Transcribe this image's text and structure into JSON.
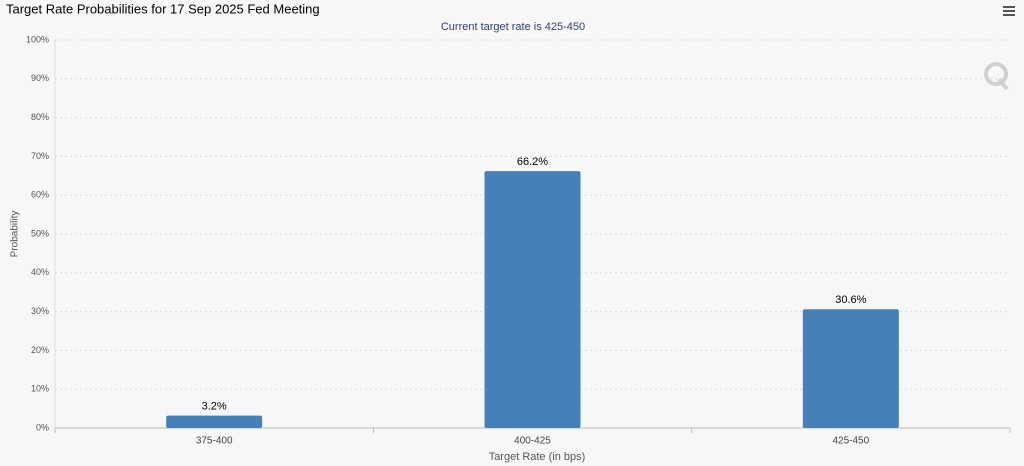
{
  "chart_data": {
    "type": "bar",
    "title": "Target Rate Probabilities for 17 Sep 2025 Fed Meeting",
    "subtitle": "Current target rate is 425-450",
    "x_label": "Target Rate (in bps)",
    "y_label": "Probability",
    "categories": [
      "375-400",
      "400-425",
      "425-450"
    ],
    "values": [
      3.2,
      66.2,
      30.6
    ],
    "value_labels": [
      "3.2%",
      "66.2%",
      "30.6%"
    ],
    "color": "#4580b8",
    "ylim": [
      0,
      100
    ],
    "yticks": [
      {
        "value": 0,
        "label": "0%"
      },
      {
        "value": 10,
        "label": "10%"
      },
      {
        "value": 20,
        "label": "20%"
      },
      {
        "value": 30,
        "label": "30%"
      },
      {
        "value": 40,
        "label": "40%"
      },
      {
        "value": 50,
        "label": "50%"
      },
      {
        "value": 60,
        "label": "60%"
      },
      {
        "value": 70,
        "label": "70%"
      },
      {
        "value": 80,
        "label": "80%"
      },
      {
        "value": 90,
        "label": "90%"
      },
      {
        "value": 100,
        "label": "100%"
      }
    ],
    "grid": true
  }
}
